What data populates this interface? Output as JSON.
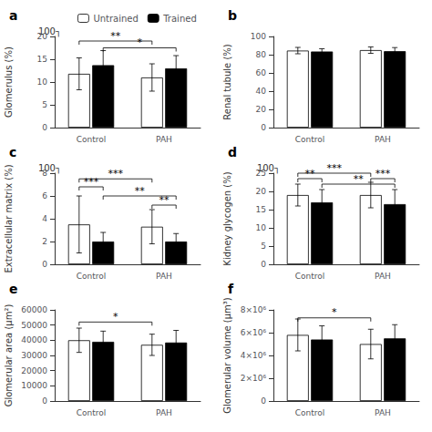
{
  "chart_data": [
    {
      "type": "bar",
      "title": "a",
      "ylabel": "Glomerulus (%)",
      "categories": [
        "Control",
        "PAH"
      ],
      "series": [
        {
          "name": "Untrained",
          "color": "white",
          "values": [
            11.8,
            11.0
          ],
          "errors": [
            3.5,
            3.0
          ]
        },
        {
          "name": "Trained",
          "color": "black",
          "values": [
            13.7,
            13.0
          ],
          "errors": [
            3.2,
            2.8
          ]
        }
      ],
      "ylim": [
        0,
        20
      ],
      "yticks": [
        0,
        5,
        10,
        15,
        20
      ],
      "grid": false,
      "legend": "upper left",
      "annotations": [
        {
          "text": "100┐"
        },
        {
          "text": "**",
          "x1": 1,
          "x2": 3,
          "y": 19.0
        },
        {
          "text": "*",
          "x1": 2,
          "x2": 4,
          "y": 17.5
        }
      ]
    },
    {
      "type": "bar",
      "title": "b",
      "ylabel": "Renal tubule (%)",
      "categories": [
        "Control",
        "PAH"
      ],
      "series": [
        {
          "name": "Untrained",
          "color": "white",
          "values": [
            84.5,
            85.0
          ],
          "errors": [
            3.5,
            3.5
          ]
        },
        {
          "name": "Trained",
          "color": "black",
          "values": [
            83.5,
            83.8
          ],
          "errors": [
            3.0,
            4.0
          ]
        }
      ],
      "ylim": [
        0,
        100
      ],
      "yticks": [
        0,
        20,
        40,
        60,
        80,
        100
      ],
      "grid": false,
      "annotations": []
    },
    {
      "type": "bar",
      "title": "c",
      "ylabel": "Extracellular matrix (%)",
      "categories": [
        "Control",
        "PAH"
      ],
      "series": [
        {
          "name": "Untrained",
          "color": "white",
          "values": [
            3.5,
            3.3
          ],
          "errors": [
            2.5,
            1.5
          ]
        },
        {
          "name": "Trained",
          "color": "black",
          "values": [
            2.0,
            2.0
          ],
          "errors": [
            0.8,
            0.7
          ]
        }
      ],
      "ylim": [
        0,
        8
      ],
      "yticks": [
        0,
        2,
        4,
        6,
        8
      ],
      "grid": false,
      "annotations": [
        {
          "text": "100┐"
        },
        {
          "text": "***",
          "x1": 1,
          "x2": 2,
          "y": 6.8
        },
        {
          "text": "***",
          "x1": 1,
          "x2": 3,
          "y": 7.5
        },
        {
          "text": "**",
          "x1": 2,
          "x2": 4,
          "y": 6.0
        },
        {
          "text": "**",
          "x1": 3,
          "x2": 4,
          "y": 5.2
        }
      ]
    },
    {
      "type": "bar",
      "title": "d",
      "ylabel": "Kidney glycogen (%)",
      "categories": [
        "Control",
        "PAH"
      ],
      "series": [
        {
          "name": "Untrained",
          "color": "white",
          "values": [
            19.0,
            19.0
          ],
          "errors": [
            3.0,
            3.5
          ]
        },
        {
          "name": "Trained",
          "color": "black",
          "values": [
            17.0,
            16.5
          ],
          "errors": [
            3.5,
            4.0
          ]
        }
      ],
      "ylim": [
        0,
        25
      ],
      "yticks": [
        0,
        5,
        10,
        15,
        20,
        25
      ],
      "grid": false,
      "annotations": [
        {
          "text": "100┐"
        },
        {
          "text": "**",
          "x1": 1,
          "x2": 2,
          "y": 23.5
        },
        {
          "text": "***",
          "x1": 1,
          "x2": 3,
          "y": 25.0
        },
        {
          "text": "**",
          "x1": 2,
          "x2": 4,
          "y": 22.0
        },
        {
          "text": "***",
          "x1": 3,
          "x2": 4,
          "y": 23.5
        }
      ]
    },
    {
      "type": "bar",
      "title": "e",
      "ylabel": "Glomerular area (μm²)",
      "categories": [
        "Control",
        "PAH"
      ],
      "series": [
        {
          "name": "Untrained",
          "color": "white",
          "values": [
            40000,
            37000
          ],
          "errors": [
            8000,
            7000
          ]
        },
        {
          "name": "Trained",
          "color": "black",
          "values": [
            39000,
            38500
          ],
          "errors": [
            7000,
            8000
          ]
        }
      ],
      "ylim": [
        0,
        60000
      ],
      "yticks": [
        0,
        10000,
        20000,
        30000,
        40000,
        50000,
        60000
      ],
      "grid": false,
      "annotations": [
        {
          "text": "*",
          "x1": 1,
          "x2": 3,
          "y": 52000
        }
      ]
    },
    {
      "type": "bar",
      "title": "f",
      "ylabel": "Glomerular volume (μm³)",
      "categories": [
        "Control",
        "PAH"
      ],
      "series": [
        {
          "name": "Untrained",
          "color": "white",
          "values": [
            5800000,
            5000000
          ],
          "errors": [
            1400000,
            1300000
          ]
        },
        {
          "name": "Trained",
          "color": "black",
          "values": [
            5400000,
            5500000
          ],
          "errors": [
            1200000,
            1200000
          ]
        }
      ],
      "ylim": [
        0,
        8000000
      ],
      "yticks": [
        0,
        {
          "value": 2000000,
          "label": "2×10⁶"
        },
        {
          "value": 4000000,
          "label": "4×10⁶"
        },
        {
          "value": 6000000,
          "label": "6×10⁶"
        },
        {
          "value": 8000000,
          "label": "8×10⁶"
        }
      ],
      "grid": false,
      "annotations": [
        {
          "text": "*",
          "x1": 1,
          "x2": 3,
          "y": 7300000
        }
      ]
    }
  ]
}
